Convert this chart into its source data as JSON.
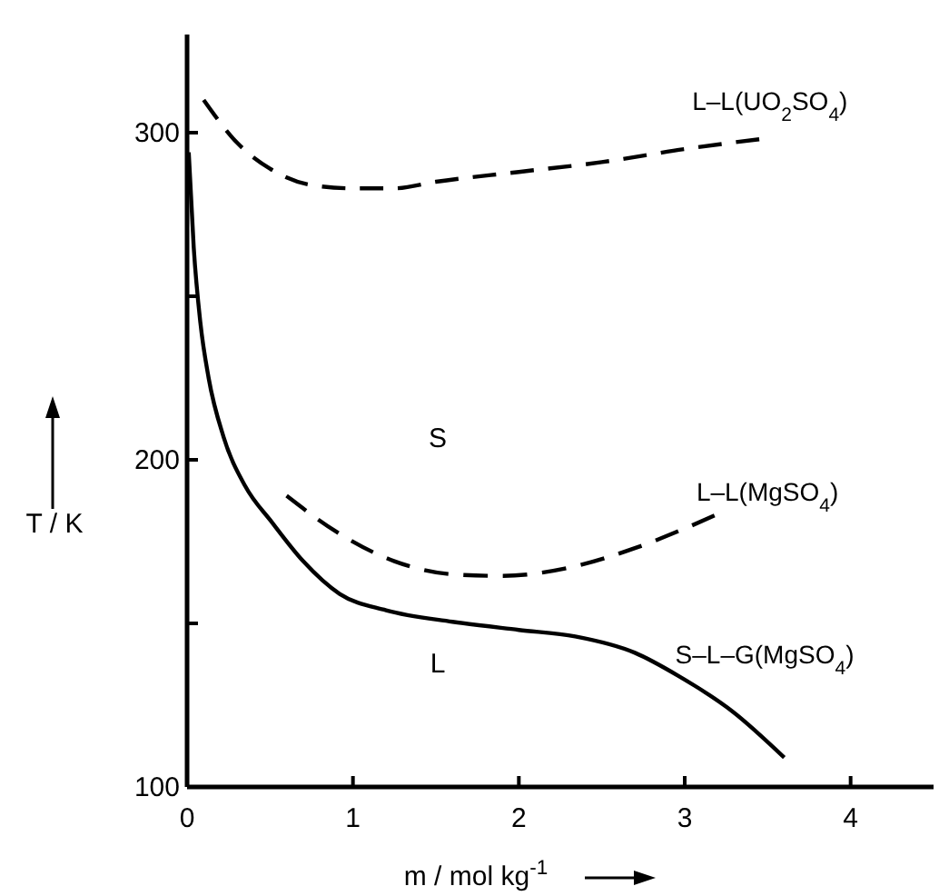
{
  "chart_data": {
    "type": "line",
    "xlabel": "m / mol kg$^{-1}$",
    "ylabel": "T / K",
    "xlim": [
      0,
      4.5
    ],
    "ylim": [
      100,
      330
    ],
    "xticks": [
      0,
      1,
      2,
      3,
      4
    ],
    "yticks": [
      100,
      {
        "value": 150,
        "label": null
      },
      200,
      {
        "value": 250,
        "label": null
      },
      300
    ],
    "grid": false,
    "marker": "none",
    "series": [
      {
        "name": "L–L(UO$_{2}$SO$_{4}$)",
        "color": "#000000",
        "line_style": "dashed",
        "x": [
          0.1,
          0.3,
          0.5,
          0.75,
          1,
          1.25,
          1.5,
          2,
          2.5,
          3,
          3.45
        ],
        "values": [
          310,
          297,
          289,
          284,
          283,
          283,
          285,
          288,
          291,
          295,
          298
        ]
      },
      {
        "name": "L–L(MgSO$_{4}$)",
        "color": "#000000",
        "line_style": "dashed",
        "x": [
          0.6,
          0.9,
          1.25,
          1.6,
          1.9,
          2.3,
          2.7,
          3.0,
          3.18
        ],
        "values": [
          189,
          178,
          169,
          165,
          164.5,
          167,
          173,
          179,
          183
        ]
      },
      {
        "name": "S–L–G(MgSO$_{4}$)",
        "color": "#000000",
        "line_style": "solid",
        "x": [
          0.01,
          0.04,
          0.08,
          0.13,
          0.22,
          0.35,
          0.51,
          0.7,
          0.92,
          1.2,
          1.6,
          2.0,
          2.34,
          2.7,
          2.96,
          3.29,
          3.6
        ],
        "values": [
          294,
          265,
          242,
          225,
          207,
          192,
          181,
          169,
          159,
          154,
          150.5,
          148,
          146,
          141,
          134,
          123,
          109
        ]
      }
    ],
    "annotations": [
      "S",
      "L"
    ]
  }
}
